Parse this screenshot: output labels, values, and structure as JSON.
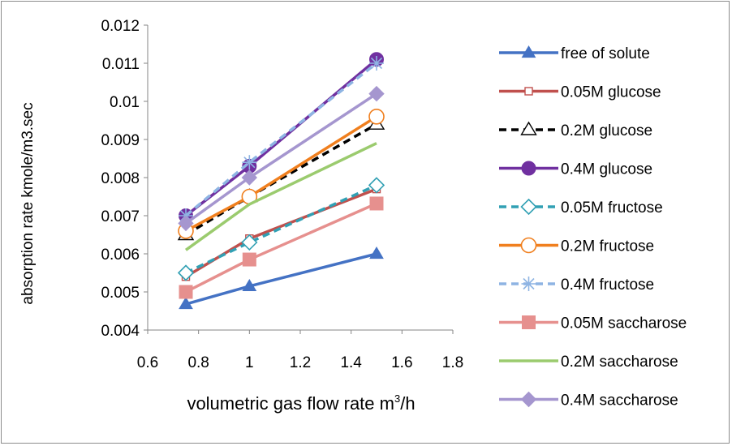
{
  "chart_data": {
    "type": "line",
    "xlabel": "volumetric  gas flow rate m",
    "xlabel_sup": "3",
    "xlabel_tail": "/h",
    "ylabel": "absorption rate kmole/m3.sec",
    "xlim": [
      0.6,
      1.8
    ],
    "ylim": [
      0.004,
      0.012
    ],
    "xticks": [
      "0.6",
      "0.8",
      "1",
      "1.2",
      "1.4",
      "1.6",
      "1.8"
    ],
    "yticks": [
      "0.004",
      "0.005",
      "0.006",
      "0.007",
      "0.008",
      "0.009",
      "0.01",
      "0.011",
      "0.012"
    ],
    "xtick_values": [
      0.6,
      0.8,
      1.0,
      1.2,
      1.4,
      1.6,
      1.8
    ],
    "ytick_values": [
      0.004,
      0.005,
      0.006,
      0.007,
      0.008,
      0.009,
      0.01,
      0.011,
      0.012
    ],
    "grid": false,
    "legend_position": "right",
    "x": [
      0.75,
      1.0,
      1.5
    ],
    "series": [
      {
        "name": "free of solute",
        "values": [
          0.00468,
          0.00515,
          0.006
        ],
        "color": "#4472C4",
        "dash": "solid",
        "marker": "triangle-filled"
      },
      {
        "name": "0.05M glucose",
        "values": [
          0.0054,
          0.0064,
          0.0077
        ],
        "color": "#C0504D",
        "dash": "solid",
        "marker": "square-open"
      },
      {
        "name": "0.2M glucose",
        "values": [
          0.0065,
          0.0075,
          0.0094
        ],
        "color": "#000000",
        "dash": "dashed",
        "marker": "triangle-open"
      },
      {
        "name": "0.4M glucose",
        "values": [
          0.007,
          0.0083,
          0.0111
        ],
        "color": "#7030A0",
        "dash": "solid",
        "marker": "circle-filled"
      },
      {
        "name": "0.05M fructose",
        "values": [
          0.0055,
          0.0063,
          0.0078
        ],
        "color": "#31A0B4",
        "dash": "dashed",
        "marker": "diamond-open"
      },
      {
        "name": "0.2M fructose",
        "values": [
          0.0066,
          0.0075,
          0.0096
        ],
        "color": "#F07F1E",
        "dash": "solid",
        "marker": "circle-open"
      },
      {
        "name": "0.4M fructose",
        "values": [
          0.007,
          0.0084,
          0.011
        ],
        "color": "#8EB4E3",
        "dash": "dashed",
        "marker": "star"
      },
      {
        "name": "0.05M saccharose",
        "values": [
          0.005,
          0.00585,
          0.00732
        ],
        "color": "#E6908E",
        "dash": "solid",
        "marker": "square-filled"
      },
      {
        "name": "0.2M saccharose",
        "values": [
          0.0061,
          0.0073,
          0.0089
        ],
        "color": "#9BCB6E",
        "dash": "solid",
        "marker": "none"
      },
      {
        "name": "0.4M saccharose",
        "values": [
          0.0068,
          0.008,
          0.0102
        ],
        "color": "#A596CF",
        "dash": "solid",
        "marker": "diamond-filled"
      }
    ]
  }
}
